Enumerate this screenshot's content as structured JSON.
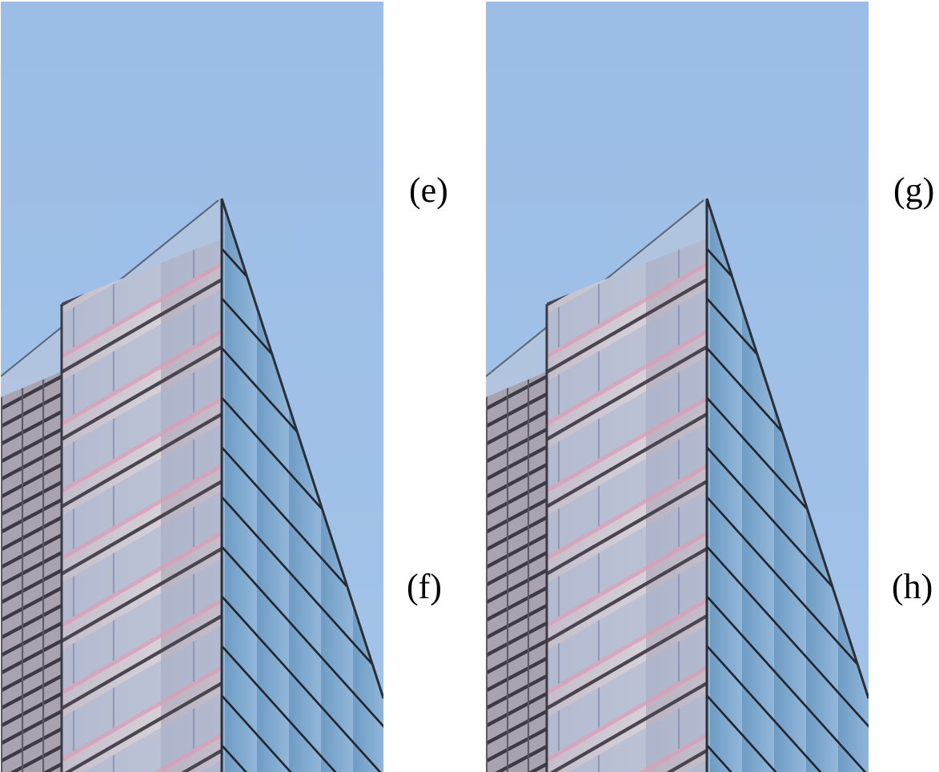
{
  "labels": {
    "e": "(e)",
    "f": "(f)",
    "g": "(g)",
    "h": "(h)"
  },
  "panels": [
    {
      "name": "left-photo",
      "subject": "building-corner-glass-facade"
    },
    {
      "name": "right-photo",
      "subject": "building-corner-glass-facade"
    }
  ],
  "colors": {
    "sky": "#9dbfe6",
    "facade_front": "#c9c3cf",
    "facade_side": "#7fa9cf",
    "frame_dark": "#2b2f38",
    "window_pink": "#d7a3b8",
    "window_blue": "#9fb6d8"
  }
}
